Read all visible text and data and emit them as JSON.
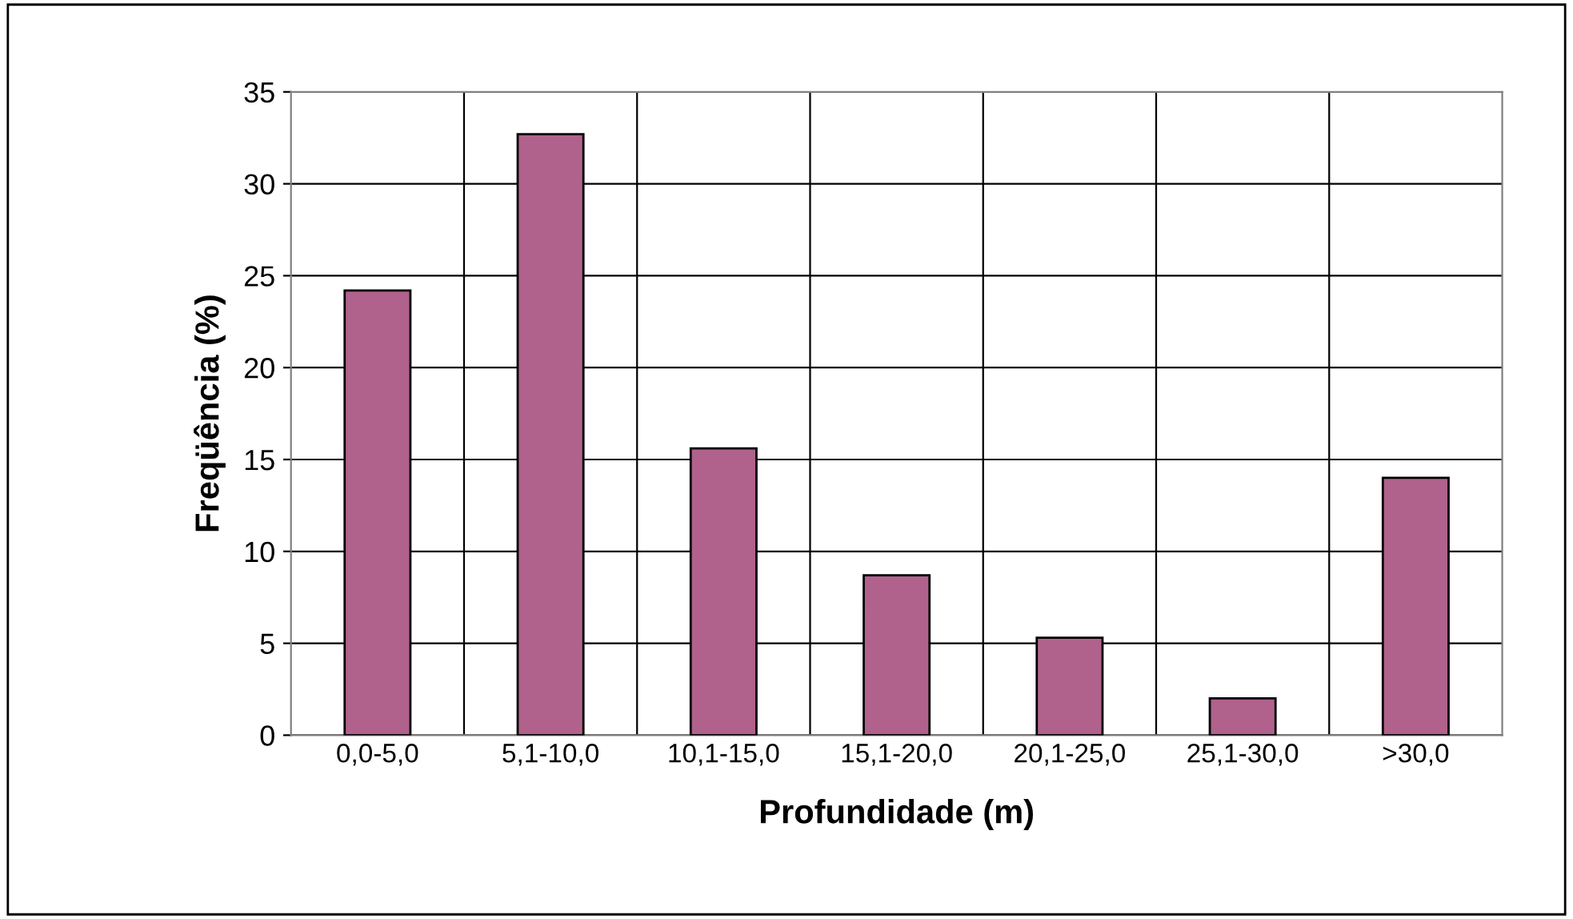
{
  "chart_data": {
    "type": "bar",
    "xlabel": "Profundidade (m)",
    "ylabel": "Freqüência (%)",
    "categories": [
      "0,0-5,0",
      "5,1-10,0",
      "10,1-15,0",
      "15,1-20,0",
      "20,1-25,0",
      "25,1-30,0",
      ">30,0"
    ],
    "values": [
      24.2,
      32.7,
      15.6,
      8.7,
      5.3,
      2.0,
      14.0
    ],
    "color": "#b0628c",
    "ylim": [
      0,
      35
    ],
    "yticks": [
      0,
      5,
      10,
      15,
      20,
      25,
      30,
      35
    ],
    "grid": true
  }
}
